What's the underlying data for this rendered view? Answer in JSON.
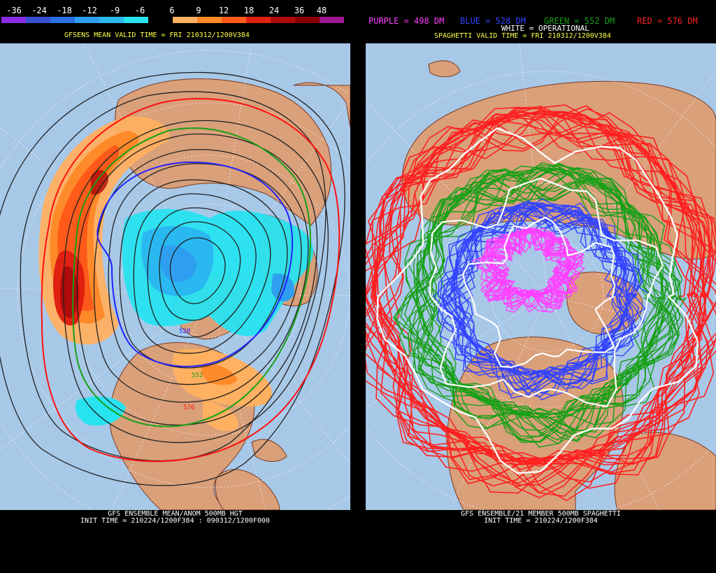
{
  "left": {
    "colorbar": {
      "labels": [
        "-36",
        "-24",
        "-18",
        "-12",
        "-9",
        "-6",
        "6",
        "9",
        "12",
        "18",
        "24",
        "36",
        "48"
      ],
      "colors": [
        "#8a2be2",
        "#3a4ed0",
        "#2b6fe0",
        "#2e9ff0",
        "#2ab8f0",
        "#27e3f0",
        "#000000",
        "#ffb060",
        "#ff8a2a",
        "#ff5a1a",
        "#e02010",
        "#b00a0a",
        "#8a0000",
        "#a01890"
      ]
    },
    "header": "GFSENS MEAN VALID TIME = FRI 210312/1200V384",
    "footer_line1": "GFS ENSEMBLE MEAN/ANOM 500MB HGT",
    "footer_line2": "INIT TIME = 210224/1200F384 : 090312/1200F000",
    "contour_labels": [
      "528",
      "552",
      "576"
    ]
  },
  "right": {
    "legend": {
      "purple": {
        "text": "PURPLE = 498 DM",
        "color": "#ff40ff"
      },
      "blue": {
        "text": "BLUE = 528 DM",
        "color": "#3344ff"
      },
      "green": {
        "text": "GREEN = 552 DM",
        "color": "#18a018"
      },
      "red": {
        "text": "RED = 576 DM",
        "color": "#ff2020"
      }
    },
    "operational": "WHITE = OPERATIONAL",
    "header": "SPAGHETTI VALID TIME = FRI 210312/1200V384",
    "footer_line1": "GFS ENSEMBLE/21 MEMBER 500MB SPAGHETTI",
    "footer_line2": "INIT TIME = 210224/1200F384"
  },
  "colors": {
    "ocean": "#a8c8e8",
    "land": "#d9a07a",
    "coast": "#7a3a20",
    "grid": "#ffffff"
  }
}
